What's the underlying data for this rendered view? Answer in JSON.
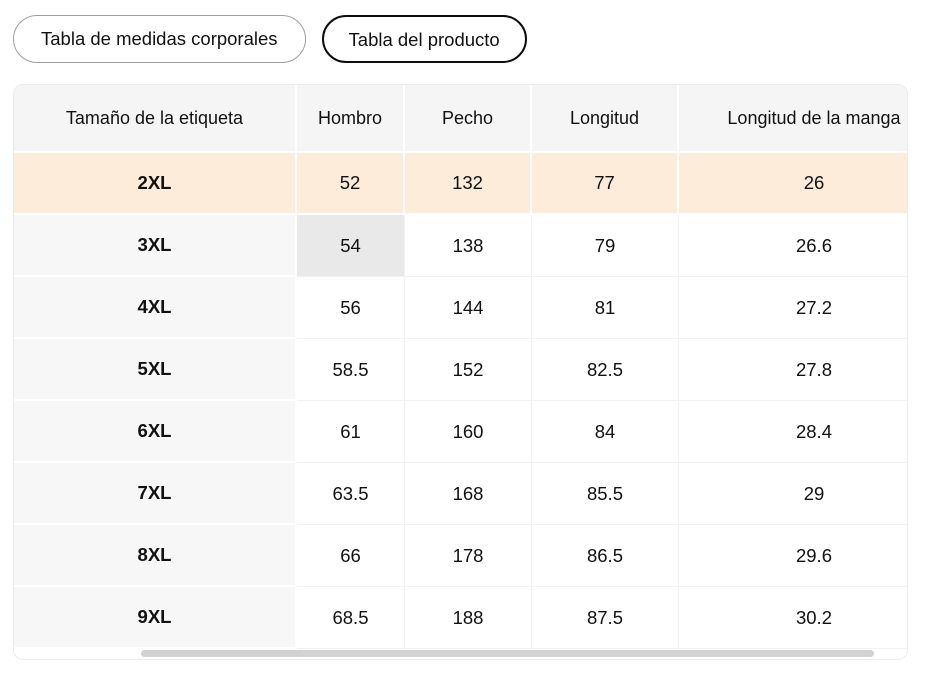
{
  "tabs": [
    {
      "label": "Tabla de medidas corporales",
      "selected": false
    },
    {
      "label": "Tabla del producto",
      "selected": true
    }
  ],
  "table": {
    "columns": [
      "Tamaño de la etiqueta",
      "Hombro",
      "Pecho",
      "Longitud",
      "Longitud de la manga"
    ],
    "rows": [
      {
        "size": "2XL",
        "hombro": "52",
        "pecho": "132",
        "longitud": "77",
        "manga": "26",
        "highlight": "row"
      },
      {
        "size": "3XL",
        "hombro": "54",
        "pecho": "138",
        "longitud": "79",
        "manga": "26.6",
        "highlight": "cell",
        "highlight_col": "hombro"
      },
      {
        "size": "4XL",
        "hombro": "56",
        "pecho": "144",
        "longitud": "81",
        "manga": "27.2"
      },
      {
        "size": "5XL",
        "hombro": "58.5",
        "pecho": "152",
        "longitud": "82.5",
        "manga": "27.8"
      },
      {
        "size": "6XL",
        "hombro": "61",
        "pecho": "160",
        "longitud": "84",
        "manga": "28.4"
      },
      {
        "size": "7XL",
        "hombro": "63.5",
        "pecho": "168",
        "longitud": "85.5",
        "manga": "29"
      },
      {
        "size": "8XL",
        "hombro": "66",
        "pecho": "178",
        "longitud": "86.5",
        "manga": "29.6"
      },
      {
        "size": "9XL",
        "hombro": "68.5",
        "pecho": "188",
        "longitud": "87.5",
        "manga": "30.2"
      }
    ]
  },
  "scrollbar": {
    "orientation": "horizontal"
  },
  "colors": {
    "selected_row_bg": "#fcecd9",
    "selected_cell_bg": "#e9e9ea",
    "header_bg": "#f5f5f6",
    "size_column_bg": "#f7f7f8",
    "selected_tab_border": "#0c0c0c",
    "scrollbar_thumb": "#d2d2d2"
  }
}
